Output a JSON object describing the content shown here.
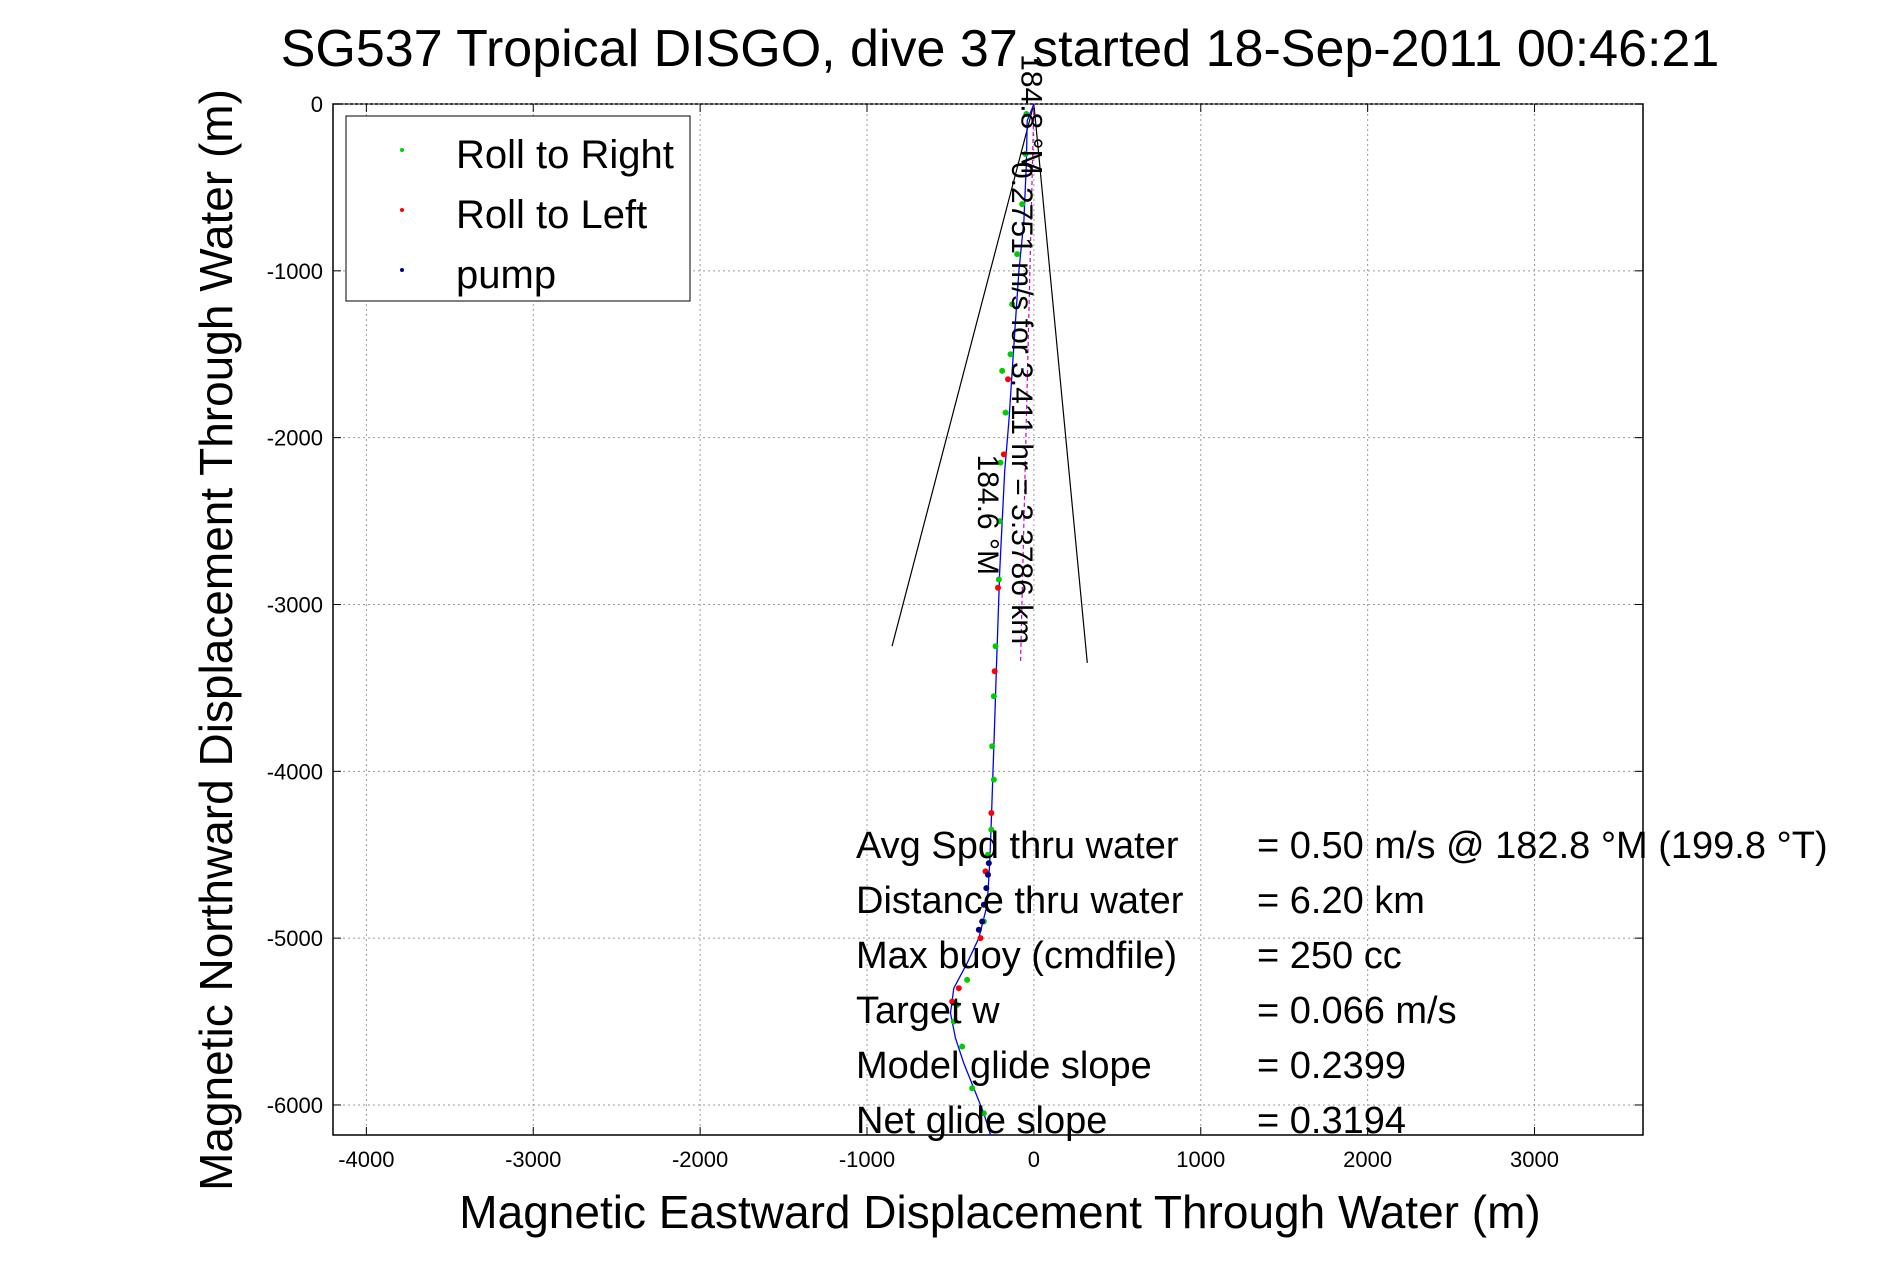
{
  "chart_data": {
    "type": "scatter",
    "title": "SG537 Tropical DISGO, dive 37 started 18-Sep-2011 00:46:21",
    "xlabel": "Magnetic Eastward Displacement Through Water (m)",
    "ylabel": "Magnetic Northward Displacement Through Water (m)",
    "xlim": [
      -4200,
      3650
    ],
    "ylim": [
      -6180,
      0
    ],
    "xticks": [
      -4000,
      -3000,
      -2000,
      -1000,
      0,
      1000,
      2000,
      3000
    ],
    "yticks": [
      0,
      -1000,
      -2000,
      -3000,
      -4000,
      -5000,
      -6000
    ],
    "xtick_labels": [
      "-4000",
      "-3000",
      "-2000",
      "-1000",
      "0",
      "1000",
      "2000",
      "3000"
    ],
    "ytick_labels": [
      "0",
      "-1000",
      "-2000",
      "-3000",
      "-4000",
      "-5000",
      "-6000"
    ],
    "grid": true,
    "legend_position": "top-left",
    "legend": [
      {
        "label": "Roll to Right",
        "color": "#00cc00"
      },
      {
        "label": "Roll to Left",
        "color": "#ff0000"
      },
      {
        "label": "pump",
        "color": "#000080"
      }
    ],
    "track_color": "#0000ff",
    "track": [
      [
        0,
        0
      ],
      [
        -40,
        -100
      ],
      [
        -45,
        -350
      ],
      [
        -60,
        -700
      ],
      [
        -90,
        -1000
      ],
      [
        -110,
        -1300
      ],
      [
        -130,
        -1600
      ],
      [
        -150,
        -1900
      ],
      [
        -175,
        -2200
      ],
      [
        -190,
        -2500
      ],
      [
        -205,
        -2800
      ],
      [
        -215,
        -3100
      ],
      [
        -225,
        -3400
      ],
      [
        -235,
        -3700
      ],
      [
        -245,
        -4000
      ],
      [
        -255,
        -4300
      ],
      [
        -265,
        -4550
      ],
      [
        -280,
        -4800
      ],
      [
        -330,
        -5000
      ],
      [
        -400,
        -5150
      ],
      [
        -480,
        -5300
      ],
      [
        -500,
        -5450
      ],
      [
        -470,
        -5600
      ],
      [
        -420,
        -5750
      ],
      [
        -360,
        -5900
      ],
      [
        -300,
        -6050
      ],
      [
        -260,
        -6180
      ]
    ],
    "roll_right_points": [
      [
        -45,
        -60
      ],
      [
        -50,
        -300
      ],
      [
        -70,
        -600
      ],
      [
        -100,
        -900
      ],
      [
        -130,
        -1200
      ],
      [
        -140,
        -1500
      ],
      [
        -190,
        -1600
      ],
      [
        -170,
        -1850
      ],
      [
        -200,
        -2150
      ],
      [
        -205,
        -2500
      ],
      [
        -210,
        -2850
      ],
      [
        -230,
        -3250
      ],
      [
        -240,
        -3550
      ],
      [
        -250,
        -3850
      ],
      [
        -240,
        -4050
      ],
      [
        -255,
        -4350
      ],
      [
        -275,
        -4500
      ],
      [
        -300,
        -4900
      ],
      [
        -400,
        -5250
      ],
      [
        -460,
        -5400
      ],
      [
        -480,
        -5500
      ],
      [
        -430,
        -5650
      ],
      [
        -370,
        -5900
      ],
      [
        -300,
        -6050
      ]
    ],
    "roll_left_points": [
      [
        -155,
        -1650
      ],
      [
        -180,
        -2100
      ],
      [
        -215,
        -2900
      ],
      [
        -235,
        -3400
      ],
      [
        -255,
        -4250
      ],
      [
        -290,
        -4600
      ],
      [
        -320,
        -5000
      ],
      [
        -450,
        -5300
      ],
      [
        -490,
        -5380
      ]
    ],
    "pump_points": [
      [
        -270,
        -4550
      ],
      [
        -275,
        -4620
      ],
      [
        -285,
        -4700
      ],
      [
        -300,
        -4800
      ],
      [
        -310,
        -4900
      ],
      [
        -330,
        -4950
      ]
    ],
    "depth_average_vector": {
      "label": "0.2751 m/s for 3.411 hr = 3.3786 km",
      "from": [
        0,
        0
      ],
      "to": [
        -80,
        -3350
      ]
    },
    "heading_cone": {
      "left_end": [
        -850,
        -3250
      ],
      "right_end": [
        320,
        -3350
      ]
    },
    "current_labels": [
      {
        "text": "184.8 °M",
        "at": [
          -170,
          -900
        ]
      },
      {
        "text": "184.6 °M",
        "at": [
          -430,
          -3300
        ]
      }
    ],
    "stats": [
      {
        "label": "Avg Spd thru water",
        "value": "=  0.50 m/s @ 182.8 °M (199.8 °T)"
      },
      {
        "label": "Distance thru water",
        "value": "=  6.20 km"
      },
      {
        "label": "Max buoy (cmdfile)",
        "value": "= 250 cc"
      },
      {
        "label": "Target w",
        "value": "= 0.066 m/s"
      },
      {
        "label": "Model glide slope",
        "value": "= 0.2399"
      },
      {
        "label": "Net glide slope",
        "value": "= 0.3194"
      }
    ]
  }
}
